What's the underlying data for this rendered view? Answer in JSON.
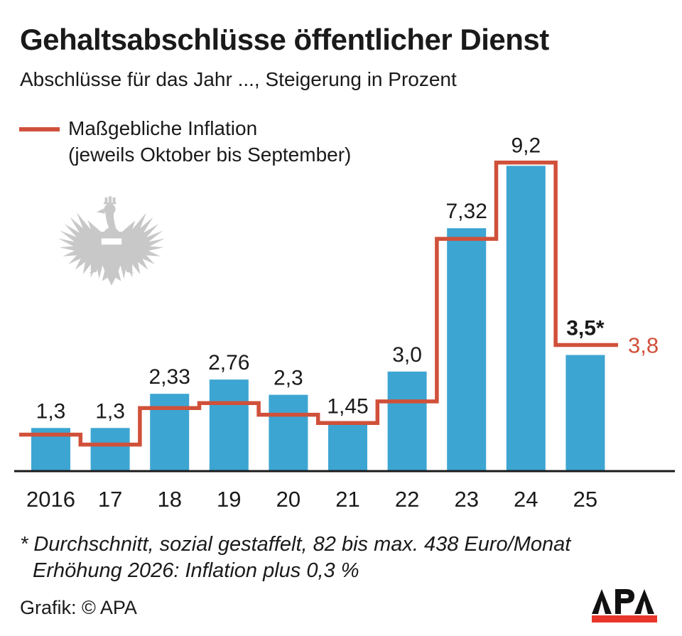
{
  "header": {
    "title": "Gehaltsabschlüsse öffentlicher Dienst",
    "subtitle": "Abschlüsse für das Jahr ..., Steigerung in Prozent"
  },
  "legend": {
    "line1": "Maßgebliche Inflation",
    "line2": "(jeweils Oktober bis September)"
  },
  "chart_data": {
    "type": "bar",
    "title": "Gehaltsabschlüsse öffentlicher Dienst",
    "subtitle": "Abschlüsse für das Jahr ..., Steigerung in Prozent",
    "categories": [
      "2016",
      "17",
      "18",
      "19",
      "20",
      "21",
      "22",
      "23",
      "24",
      "25"
    ],
    "series": [
      {
        "name": "Gehaltsabschluss (Steigerung in Prozent)",
        "type": "bar",
        "color": "#3da5d2",
        "values": [
          1.3,
          1.3,
          2.33,
          2.76,
          2.3,
          1.45,
          3.0,
          7.32,
          9.2,
          3.5
        ],
        "labels": [
          "1,3",
          "1,3",
          "2,33",
          "2,76",
          "2,3",
          "1,45",
          "3,0",
          "7,32",
          "9,2",
          "3,5*"
        ]
      },
      {
        "name": "Maßgebliche Inflation (jeweils Oktober bis September)",
        "type": "step-line",
        "color": "#d0503a",
        "values_estimated": [
          1.1,
          0.8,
          1.9,
          2.05,
          1.7,
          1.45,
          2.1,
          7.0,
          9.3,
          3.8
        ],
        "end_label": "3,8"
      }
    ],
    "ylim": [
      0,
      10
    ],
    "xlabel": "",
    "ylabel": "",
    "grid": false,
    "legend_position": "top-left",
    "axis_color": "#1a1a1a",
    "text_color": "#1a1a1a"
  },
  "footnote": {
    "line1": "* Durchschnitt, sozial gestaffelt, 82 bis max. 438 Euro/Monat",
    "line2": "Erhöhung 2026: Inflation plus 0,3 %"
  },
  "credit": {
    "label": "Grafik: © APA"
  },
  "logo": {
    "text": "APA",
    "bar_color": "#e8362b"
  }
}
